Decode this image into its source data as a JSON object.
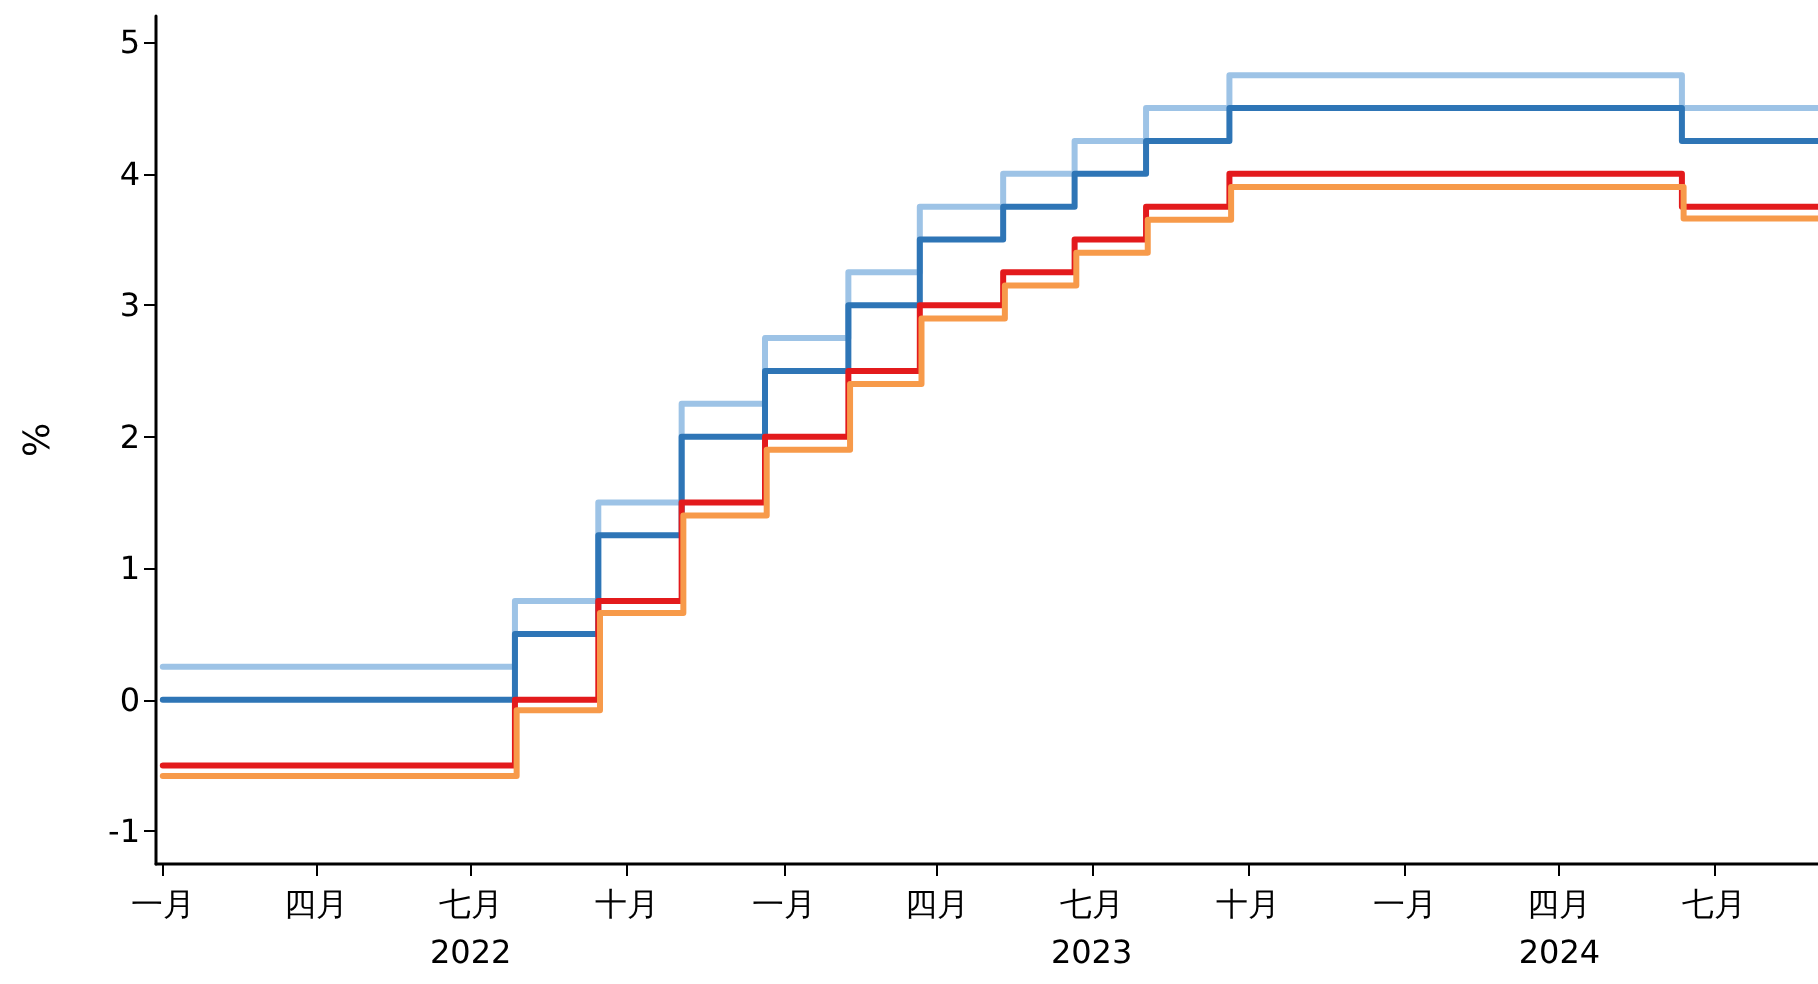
{
  "chart_data": {
    "type": "step",
    "ylabel": "%",
    "series": [
      {
        "color": "#9dc3e6",
        "x": [
          "2022-01-01",
          "2022-07-27",
          "2022-09-14",
          "2022-11-02",
          "2022-12-21",
          "2023-02-08",
          "2023-03-22",
          "2023-05-10",
          "2023-06-21",
          "2023-08-02",
          "2023-09-20",
          "2024-06-12",
          "2024-08-31"
        ],
        "values": [
          0.25,
          0.75,
          1.5,
          2.25,
          2.75,
          3.25,
          3.75,
          4.0,
          4.25,
          4.5,
          4.75,
          4.5,
          4.5
        ]
      },
      {
        "color": "#2e75b6",
        "x": [
          "2022-01-01",
          "2022-07-27",
          "2022-09-14",
          "2022-11-02",
          "2022-12-21",
          "2023-02-08",
          "2023-03-22",
          "2023-05-10",
          "2023-06-21",
          "2023-08-02",
          "2023-09-20",
          "2024-06-12",
          "2024-08-31"
        ],
        "values": [
          0,
          0.5,
          1.25,
          2.0,
          2.5,
          3.0,
          3.5,
          3.75,
          4.0,
          4.25,
          4.5,
          4.25,
          4.25
        ]
      },
      {
        "color": "#e31a1c",
        "x": [
          "2022-01-01",
          "2022-07-27",
          "2022-09-14",
          "2022-11-02",
          "2022-12-21",
          "2023-02-08",
          "2023-03-22",
          "2023-05-10",
          "2023-06-21",
          "2023-08-02",
          "2023-09-20",
          "2024-06-12",
          "2024-08-31"
        ],
        "values": [
          -0.5,
          0,
          0.75,
          1.5,
          2.0,
          2.5,
          3.0,
          3.25,
          3.5,
          3.75,
          4.0,
          3.75,
          3.75
        ]
      },
      {
        "color": "#f79a4a",
        "x": [
          "2022-01-01",
          "2022-07-28",
          "2022-09-15",
          "2022-11-03",
          "2022-12-22",
          "2023-02-09",
          "2023-03-23",
          "2023-05-11",
          "2023-06-22",
          "2023-08-03",
          "2023-09-21",
          "2024-06-13",
          "2024-08-31"
        ],
        "values": [
          -0.58,
          -0.08,
          0.66,
          1.4,
          1.9,
          2.4,
          2.9,
          3.15,
          3.4,
          3.65,
          3.9,
          3.66,
          3.66
        ]
      }
    ],
    "xlim": [
      "2021-12-28",
      "2024-08-31"
    ],
    "xticks": [
      {
        "value": "2022-01-01",
        "label": "一月"
      },
      {
        "value": "2022-04-01",
        "label": "四月"
      },
      {
        "value": "2022-07-01",
        "label": "七月\n2022"
      },
      {
        "value": "2022-10-01",
        "label": "十月"
      },
      {
        "value": "2023-01-01",
        "label": "一月"
      },
      {
        "value": "2023-04-01",
        "label": "四月"
      },
      {
        "value": "2023-07-01",
        "label": "七月\n2023"
      },
      {
        "value": "2023-10-01",
        "label": "十月"
      },
      {
        "value": "2024-01-01",
        "label": "一月"
      },
      {
        "value": "2024-04-01",
        "label": "四月\n2024"
      },
      {
        "value": "2024-07-01",
        "label": "七月"
      }
    ],
    "ylim": [
      -1.25,
      5.2
    ],
    "yticks": [
      -1,
      0,
      1,
      2,
      3,
      4,
      5
    ],
    "grid": false,
    "marker": "none",
    "line_style": "solid"
  }
}
